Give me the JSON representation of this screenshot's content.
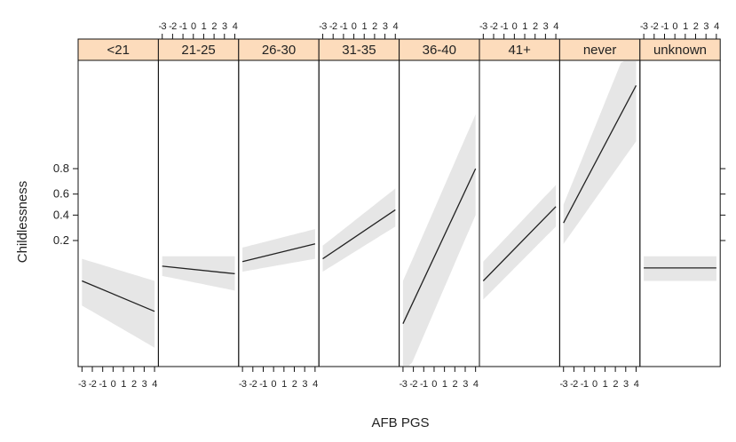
{
  "chart_data": {
    "type": "line",
    "xlabel": "AFB PGS",
    "ylabel": "Childlessness",
    "x_ticks": [
      -3,
      -2,
      -1,
      0,
      1,
      2,
      3,
      4
    ],
    "x_tick_labels": [
      "-3",
      "-2",
      "-1",
      "0",
      "1",
      "2",
      "3",
      "4"
    ],
    "xlim": [
      -3.2,
      4.2
    ],
    "y_ticks": [
      0.2,
      0.4,
      0.6,
      0.8
    ],
    "y_tick_labels": [
      "0.2",
      "0.4",
      "0.6",
      "0.8"
    ],
    "scale_note": "y axis appears logit-scaled (tick spacing compresses toward 0.5)",
    "panels": [
      {
        "label": "<21",
        "x": [
          -3,
          4
        ],
        "y": [
          0.05,
          0.016
        ],
        "ci_low": [
          0.02,
          0.004
        ],
        "ci_high": [
          0.11,
          0.05
        ]
      },
      {
        "label": "21-25",
        "x": [
          -3,
          4
        ],
        "y": [
          0.085,
          0.065
        ],
        "ci_low": [
          0.06,
          0.035
        ],
        "ci_high": [
          0.12,
          0.12
        ]
      },
      {
        "label": "26-30",
        "x": [
          -3,
          4
        ],
        "y": [
          0.1,
          0.18
        ],
        "ci_low": [
          0.07,
          0.11
        ],
        "ci_high": [
          0.16,
          0.28
        ]
      },
      {
        "label": "31-35",
        "x": [
          -3,
          4
        ],
        "y": [
          0.11,
          0.45
        ],
        "ci_low": [
          0.07,
          0.3
        ],
        "ci_high": [
          0.17,
          0.65
        ]
      },
      {
        "label": "36-40",
        "x": [
          -3,
          4
        ],
        "y": [
          0.01,
          0.8
        ],
        "ci_low": [
          0.001,
          0.4
        ],
        "ci_high": [
          0.05,
          0.97
        ]
      },
      {
        "label": "41+",
        "x": [
          -3,
          4
        ],
        "y": [
          0.05,
          0.48
        ],
        "ci_low": [
          0.025,
          0.3
        ],
        "ci_high": [
          0.1,
          0.68
        ]
      },
      {
        "label": "never",
        "x": [
          -3,
          4
        ],
        "y": [
          0.33,
          0.99
        ],
        "ci_low": [
          0.18,
          0.92
        ],
        "ci_high": [
          0.5,
          0.999
        ]
      },
      {
        "label": "unknown",
        "x": [
          -3,
          4
        ],
        "y": [
          0.08,
          0.08
        ],
        "ci_low": [
          0.05,
          0.05
        ],
        "ci_high": [
          0.12,
          0.12
        ]
      }
    ]
  }
}
